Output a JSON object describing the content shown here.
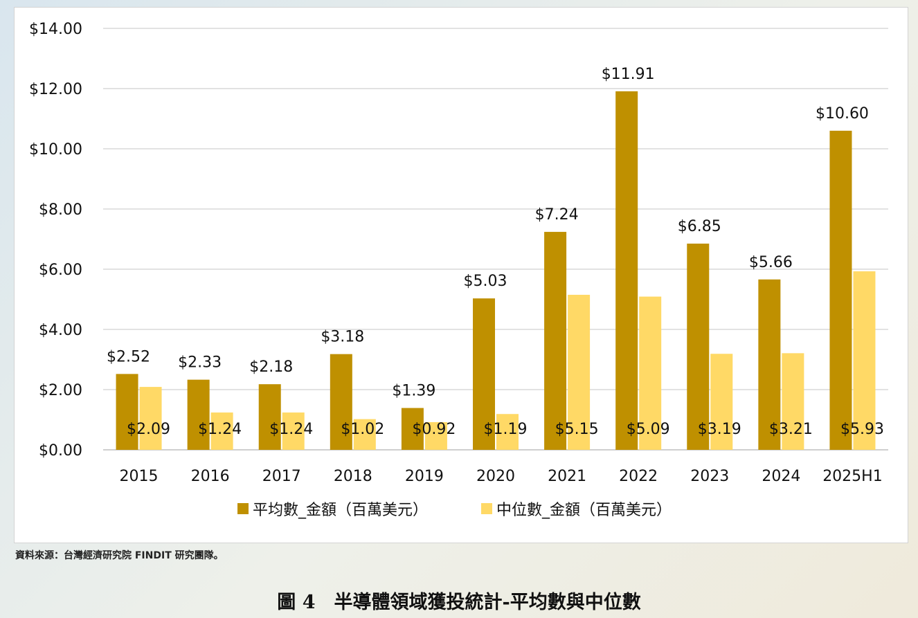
{
  "source_note": "資料來源：台灣經濟研究院 FINDIT 研究團隊。",
  "figure_caption": "圖 4　半導體領域獲投統計-平均數與中位數",
  "colors": {
    "mean": "#BF9000",
    "median": "#FFD966",
    "grid": "#D9D9D9",
    "axis": "#BFBFBF",
    "text": "#111111"
  },
  "chart_data": {
    "type": "bar",
    "title": "",
    "xlabel": "",
    "ylabel": "",
    "categories": [
      "2015",
      "2016",
      "2017",
      "2018",
      "2019",
      "2020",
      "2021",
      "2022",
      "2023",
      "2024",
      "2025H1"
    ],
    "series": [
      {
        "name": "平均數_金額（百萬美元）",
        "values": [
          2.52,
          2.33,
          2.18,
          3.18,
          1.39,
          5.03,
          7.24,
          11.91,
          6.85,
          5.66,
          10.6
        ],
        "labels": [
          "$2.52",
          "$2.33",
          "$2.18",
          "$3.18",
          "$1.39",
          "$5.03",
          "$7.24",
          "$11.91",
          "$6.85",
          "$5.66",
          "$10.60"
        ]
      },
      {
        "name": "中位數_金額（百萬美元）",
        "values": [
          2.09,
          1.24,
          1.24,
          1.02,
          0.92,
          1.19,
          5.15,
          5.09,
          3.19,
          3.21,
          5.93
        ],
        "labels": [
          "$2.09",
          "$1.24",
          "$1.24",
          "$1.02",
          "$0.92",
          "$1.19",
          "$5.15",
          "$5.09",
          "$3.19",
          "$3.21",
          "$5.93"
        ]
      }
    ],
    "ylim": [
      0,
      14
    ],
    "yticks": [
      0,
      2,
      4,
      6,
      8,
      10,
      12,
      14
    ],
    "ytick_labels": [
      "$0.00",
      "$2.00",
      "$4.00",
      "$6.00",
      "$8.00",
      "$10.00",
      "$12.00",
      "$14.00"
    ],
    "grid": true,
    "legend_position": "bottom"
  }
}
